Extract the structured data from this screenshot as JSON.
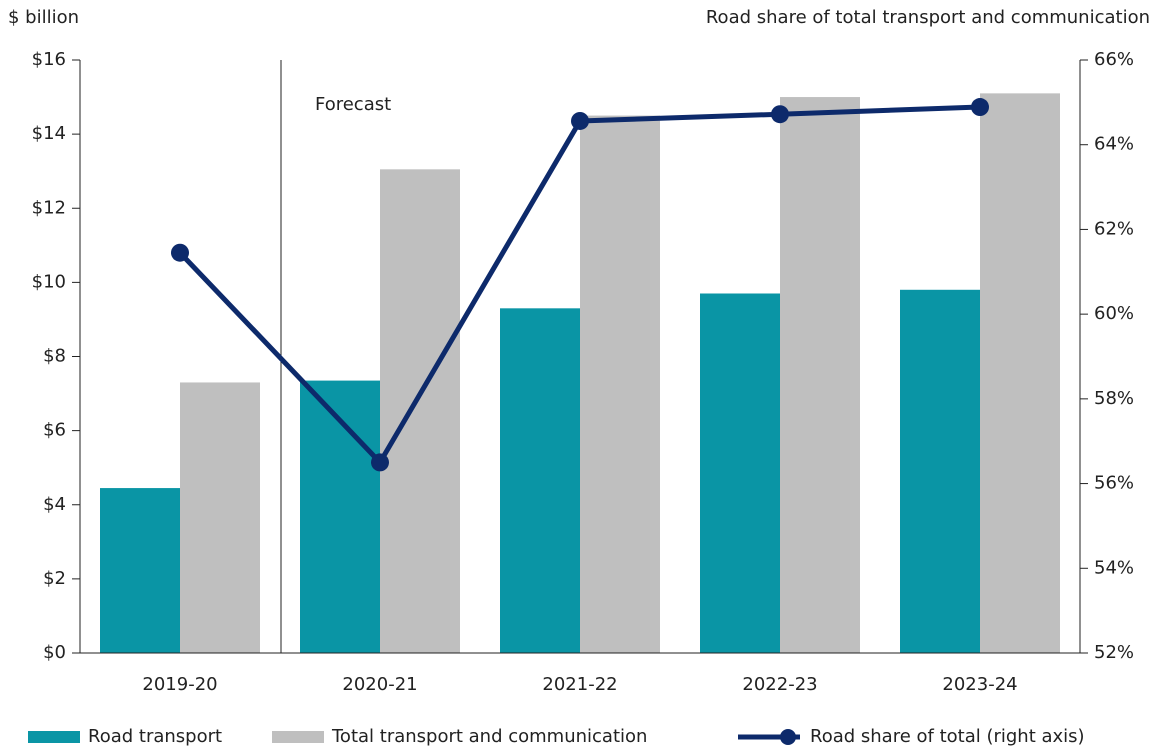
{
  "chart_data": {
    "type": "bar_line",
    "y_label": "$ billion",
    "y2_label": "Road share of total transport and communication",
    "annotation": "Forecast",
    "categories": [
      "2019-20",
      "2020-21",
      "2021-22",
      "2022-23",
      "2023-24"
    ],
    "series": [
      {
        "name": "Road transport",
        "color": "#0a95a5",
        "type": "bar",
        "values": [
          4.45,
          7.35,
          9.3,
          9.7,
          9.8
        ]
      },
      {
        "name": "Total transport and communication",
        "color": "#bfbfbf",
        "type": "bar",
        "values": [
          7.3,
          13.05,
          14.5,
          15.0,
          15.1
        ]
      },
      {
        "name": "Road share of total (right axis)",
        "color": "#0d2a6b",
        "type": "line",
        "axis": "y2",
        "values": [
          61.45,
          56.5,
          64.56,
          64.72,
          64.89
        ]
      }
    ],
    "ylim": [
      0,
      16
    ],
    "yticks": [
      {
        "value": 0,
        "label": "$0"
      },
      {
        "value": 2,
        "label": "$2"
      },
      {
        "value": 4,
        "label": "$4"
      },
      {
        "value": 6,
        "label": "$6"
      },
      {
        "value": 8,
        "label": "$8"
      },
      {
        "value": 10,
        "label": "$10"
      },
      {
        "value": 12,
        "label": "$12"
      },
      {
        "value": 14,
        "label": "$14"
      },
      {
        "value": 16,
        "label": "$16"
      }
    ],
    "y2lim": [
      52,
      66
    ],
    "y2ticks": [
      {
        "value": 52,
        "label": "52%"
      },
      {
        "value": 54,
        "label": "54%"
      },
      {
        "value": 56,
        "label": "56%"
      },
      {
        "value": 58,
        "label": "58%"
      },
      {
        "value": 60,
        "label": "60%"
      },
      {
        "value": 62,
        "label": "62%"
      },
      {
        "value": 64,
        "label": "64%"
      },
      {
        "value": 66,
        "label": "66%"
      }
    ],
    "grid": false,
    "legend": "bottom"
  }
}
